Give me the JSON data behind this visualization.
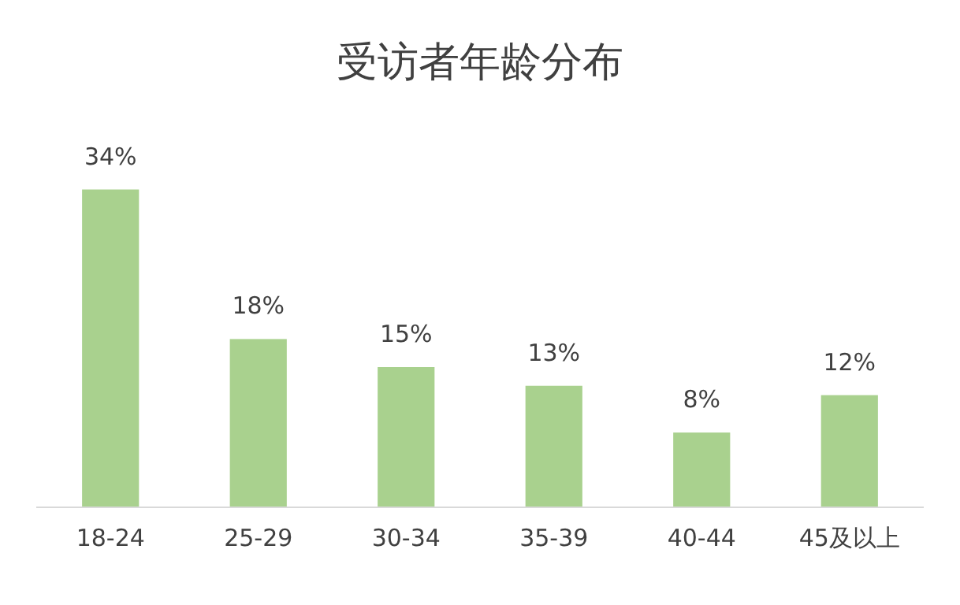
{
  "chart_data": {
    "type": "bar",
    "title": "受访者年龄分布",
    "categories": [
      "18-24",
      "25-29",
      "30-34",
      "35-39",
      "40-44",
      "45及以上"
    ],
    "values": [
      34,
      18,
      15,
      13,
      8,
      12
    ],
    "value_labels": [
      "34%",
      "18%",
      "15%",
      "13%",
      "8%",
      "12%"
    ],
    "color": "#a9d18e",
    "tick_labels": "x"
  }
}
